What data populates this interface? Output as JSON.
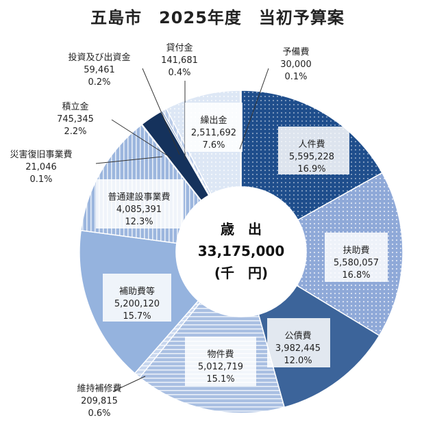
{
  "chart_data": {
    "type": "pie",
    "title": "五島市　2025年度　当初予算案",
    "center": {
      "line1": "歳　出",
      "line2": "33,175,000",
      "line3": "(千　円)"
    },
    "total": 33175000,
    "slices": [
      {
        "name": "人件費",
        "value": 5595228,
        "value_label": "5,595,228",
        "percent": "16.9%",
        "color": "#1f4e8c",
        "pattern": "dots-dark"
      },
      {
        "name": "扶助費",
        "value": 5580057,
        "value_label": "5,580,057",
        "percent": "16.8%",
        "color": "#8fa9d8",
        "pattern": "dots-light"
      },
      {
        "name": "公債費",
        "value": 3982445,
        "value_label": "3,982,445",
        "percent": "12.0%",
        "color": "#3c649a",
        "pattern": "solid"
      },
      {
        "name": "物件費",
        "value": 5012719,
        "value_label": "5,012,719",
        "percent": "15.1%",
        "color": "#a9bfe2",
        "pattern": "hlines"
      },
      {
        "name": "維持補修費",
        "value": 209815,
        "value_label": "209,815",
        "percent": "0.6%",
        "color": "#c7d6ee",
        "pattern": "hlines"
      },
      {
        "name": "補助費等",
        "value": 5200120,
        "value_label": "5,200,120",
        "percent": "15.7%",
        "color": "#95b3de",
        "pattern": "solid"
      },
      {
        "name": "普通建設事業費",
        "value": 4085391,
        "value_label": "4,085,391",
        "percent": "12.3%",
        "color": "#9cb6de",
        "pattern": "vlines"
      },
      {
        "name": "災害復旧事業費",
        "value": 21046,
        "value_label": "21,046",
        "percent": "0.1%",
        "color": "#6f8fc2",
        "pattern": "solid"
      },
      {
        "name": "積立金",
        "value": 745345,
        "value_label": "745,345",
        "percent": "2.2%",
        "color": "#15325c",
        "pattern": "solid"
      },
      {
        "name": "投資及び出資金",
        "value": 59461,
        "value_label": "59,461",
        "percent": "0.2%",
        "color": "#5f7fb0",
        "pattern": "solid"
      },
      {
        "name": "貸付金",
        "value": 141681,
        "value_label": "141,681",
        "percent": "0.4%",
        "color": "#b9cbe8",
        "pattern": "vlines"
      },
      {
        "name": "繰出金",
        "value": 2511692,
        "value_label": "2,511,692",
        "percent": "7.6%",
        "color": "#dde7f5",
        "pattern": "dots-light"
      },
      {
        "name": "予備費",
        "value": 30000,
        "value_label": "30,000",
        "percent": "0.1%",
        "color": "#4a6fa8",
        "pattern": "solid"
      }
    ],
    "legend": "none"
  }
}
